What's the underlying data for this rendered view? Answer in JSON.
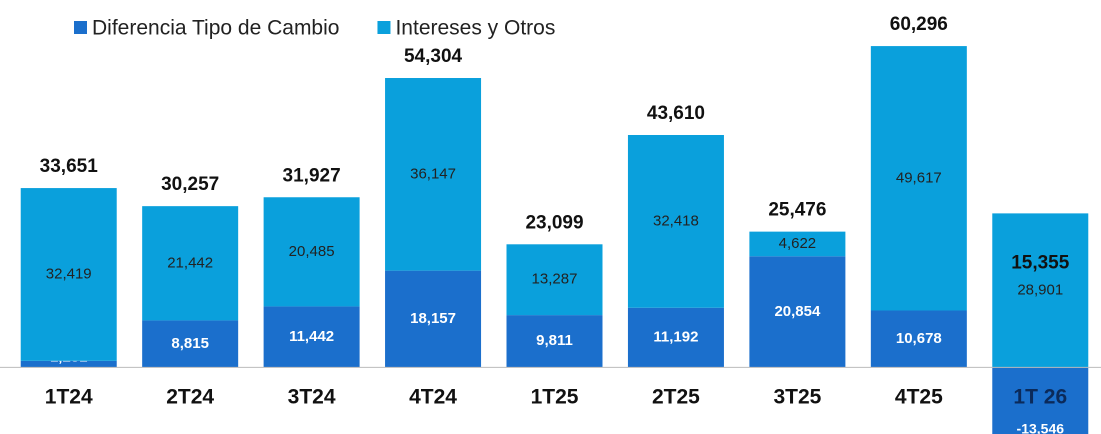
{
  "chart_data": {
    "type": "stacked_bar",
    "categories": [
      "1T24",
      "2T24",
      "3T24",
      "4T24",
      "1T25",
      "2T25",
      "3T25",
      "4T25",
      "1T 26"
    ],
    "series": [
      {
        "name": "Diferencia Tipo de Cambio",
        "color": "#1b6fcc",
        "values": [
          1231,
          8815,
          11442,
          18157,
          9811,
          11192,
          20854,
          10678,
          -13546
        ],
        "value_labels": [
          "1,231",
          "8,815",
          "11,442",
          "18,157",
          "9,811",
          "11,192",
          "20,854",
          "10,678",
          "-13,546"
        ]
      },
      {
        "name": "Intereses y Otros",
        "color": "#0aa0dc",
        "values": [
          32419,
          21442,
          20485,
          36147,
          13287,
          32418,
          4622,
          49617,
          28901
        ],
        "value_labels": [
          "32,419",
          "21,442",
          "20,485",
          "36,147",
          "13,287",
          "32,418",
          "4,622",
          "49,617",
          "28,901"
        ]
      }
    ],
    "totals": [
      33651,
      30257,
      31927,
      54304,
      23099,
      43610,
      25476,
      60296,
      15355
    ],
    "total_labels": [
      "33,651",
      "30,257",
      "31,927",
      "54,304",
      "23,099",
      "43,610",
      "25,476",
      "60,296",
      "15,355"
    ],
    "ylim": [
      -12500,
      62000
    ]
  }
}
